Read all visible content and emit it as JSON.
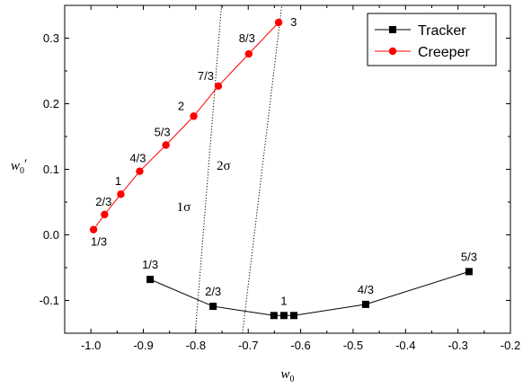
{
  "chart_data": {
    "type": "line",
    "xlabel": "w",
    "xlabel_sub": "0",
    "ylabel": "w",
    "ylabel_sub": "0",
    "ylabel_prime": "′",
    "xlim": [
      -1.05,
      -0.2
    ],
    "ylim": [
      -0.15,
      0.35
    ],
    "x_ticks": [
      -1.0,
      -0.9,
      -0.8,
      -0.7,
      -0.6,
      -0.5,
      -0.4,
      -0.3,
      -0.2
    ],
    "x_tick_labels": [
      "-1.0",
      "-0.9",
      "-0.8",
      "-0.7",
      "-0.6",
      "-0.5",
      "-0.4",
      "-0.3",
      "-0.2"
    ],
    "y_ticks": [
      -0.1,
      0.0,
      0.1,
      0.2,
      0.3
    ],
    "y_tick_labels": [
      "-0.1",
      "0.0",
      "0.1",
      "0.2",
      "0.3"
    ],
    "legend_position": "top-right",
    "grid": false,
    "series": [
      {
        "name": "Tracker",
        "color": "#000000",
        "marker": "square",
        "points": [
          [
            -0.887,
            -0.068
          ],
          [
            -0.767,
            -0.109
          ],
          [
            -0.651,
            -0.123
          ],
          [
            -0.632,
            -0.123
          ],
          [
            -0.613,
            -0.123
          ],
          [
            -0.476,
            -0.106
          ],
          [
            -0.279,
            -0.056
          ]
        ],
        "labels": [
          {
            "text": "1/3",
            "x": -0.887,
            "y": -0.068
          },
          {
            "text": "2/3",
            "x": -0.767,
            "y": -0.109
          },
          {
            "text": "1",
            "x": -0.632,
            "y": -0.123
          },
          {
            "text": "4/3",
            "x": -0.476,
            "y": -0.106
          },
          {
            "text": "5/3",
            "x": -0.279,
            "y": -0.056
          }
        ]
      },
      {
        "name": "Creeper",
        "color": "#ff0000",
        "marker": "circle",
        "points": [
          [
            -0.995,
            0.008
          ],
          [
            -0.974,
            0.031
          ],
          [
            -0.943,
            0.062
          ],
          [
            -0.907,
            0.097
          ],
          [
            -0.857,
            0.137
          ],
          [
            -0.804,
            0.181
          ],
          [
            -0.757,
            0.227
          ],
          [
            -0.699,
            0.276
          ],
          [
            -0.642,
            0.324
          ]
        ],
        "labels": [
          {
            "text": "1/3",
            "x": -0.995,
            "y": 0.008
          },
          {
            "text": "2/3",
            "x": -0.974,
            "y": 0.031
          },
          {
            "text": "1",
            "x": -0.943,
            "y": 0.062
          },
          {
            "text": "4/3",
            "x": -0.907,
            "y": 0.097
          },
          {
            "text": "5/3",
            "x": -0.857,
            "y": 0.137
          },
          {
            "text": "2",
            "x": -0.804,
            "y": 0.181
          },
          {
            "text": "7/3",
            "x": -0.757,
            "y": 0.227
          },
          {
            "text": "8/3",
            "x": -0.699,
            "y": 0.276
          },
          {
            "text": "3",
            "x": -0.642,
            "y": 0.324
          }
        ]
      }
    ],
    "contours": [
      {
        "label": "1σ",
        "points": [
          [
            -0.801,
            -0.15
          ],
          [
            -0.751,
            0.35
          ]
        ]
      },
      {
        "label": "2σ",
        "points": [
          [
            -0.711,
            -0.15
          ],
          [
            -0.636,
            0.35
          ]
        ]
      }
    ],
    "contour_labels": [
      {
        "text": "1σ",
        "x": -0.823,
        "y": 0.036
      },
      {
        "text": "2σ",
        "x": -0.747,
        "y": 0.099
      }
    ]
  }
}
